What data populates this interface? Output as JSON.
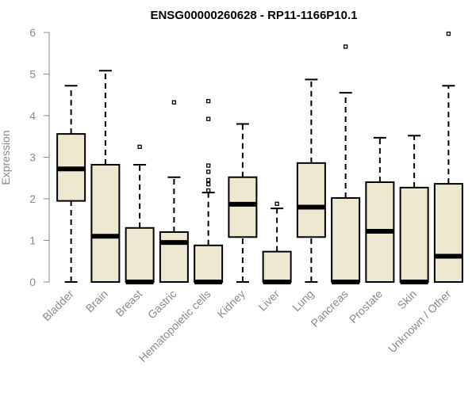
{
  "chart_data": {
    "type": "boxplot",
    "title": "ENSG00000260628 - RP11-1166P10.1",
    "ylabel": "Expression",
    "xlabel": "",
    "ylim": [
      0,
      6
    ],
    "yticks": [
      0,
      1,
      2,
      3,
      4,
      5,
      6
    ],
    "grid": false,
    "categories": [
      "Bladder",
      "Brain",
      "Breast",
      "Gastric",
      "Hematopoietic cells",
      "Kidney",
      "Liver",
      "Lung",
      "Pancreas",
      "Prostate",
      "Skin",
      "Unknown / Other"
    ],
    "boxes": [
      {
        "category": "Bladder",
        "whisker_low": 0,
        "q1": 1.95,
        "median": 2.72,
        "q3": 3.56,
        "whisker_high": 4.72,
        "outliers": []
      },
      {
        "category": "Brain",
        "whisker_low": 0,
        "q1": 0,
        "median": 1.1,
        "q3": 2.82,
        "whisker_high": 5.08,
        "outliers": []
      },
      {
        "category": "Breast",
        "whisker_low": 0,
        "q1": 0,
        "median": 0,
        "q3": 1.3,
        "whisker_high": 2.82,
        "outliers": [
          3.25
        ]
      },
      {
        "category": "Gastric",
        "whisker_low": 0,
        "q1": 0,
        "median": 0.95,
        "q3": 1.2,
        "whisker_high": 2.52,
        "outliers": [
          4.32
        ]
      },
      {
        "category": "Hematopoietic cells",
        "whisker_low": 0,
        "q1": 0,
        "median": 0,
        "q3": 0.88,
        "whisker_high": 2.15,
        "outliers": [
          2.2,
          2.35,
          2.45,
          2.65,
          2.8,
          3.92,
          4.35
        ]
      },
      {
        "category": "Kidney",
        "whisker_low": 0,
        "q1": 1.08,
        "median": 1.87,
        "q3": 2.52,
        "whisker_high": 3.8,
        "outliers": []
      },
      {
        "category": "Liver",
        "whisker_low": 0,
        "q1": 0,
        "median": 0,
        "q3": 0.73,
        "whisker_high": 1.77,
        "outliers": [
          1.88
        ]
      },
      {
        "category": "Lung",
        "whisker_low": 0,
        "q1": 1.08,
        "median": 1.8,
        "q3": 2.86,
        "whisker_high": 4.87,
        "outliers": []
      },
      {
        "category": "Pancreas",
        "whisker_low": 0,
        "q1": 0,
        "median": 0,
        "q3": 2.02,
        "whisker_high": 4.55,
        "outliers": [
          5.66
        ]
      },
      {
        "category": "Prostate",
        "whisker_low": 0,
        "q1": 0,
        "median": 1.22,
        "q3": 2.4,
        "whisker_high": 3.47,
        "outliers": []
      },
      {
        "category": "Skin",
        "whisker_low": 0,
        "q1": 0,
        "median": 0,
        "q3": 2.27,
        "whisker_high": 3.52,
        "outliers": []
      },
      {
        "category": "Unknown / Other",
        "whisker_low": 0,
        "q1": 0,
        "median": 0.62,
        "q3": 2.36,
        "whisker_high": 4.72,
        "outliers": [
          5.97
        ]
      }
    ],
    "colors": {
      "box_fill": "#efe8d0",
      "box_stroke": "#000000",
      "axis": "#8a8a8a",
      "text": "#000000"
    }
  }
}
